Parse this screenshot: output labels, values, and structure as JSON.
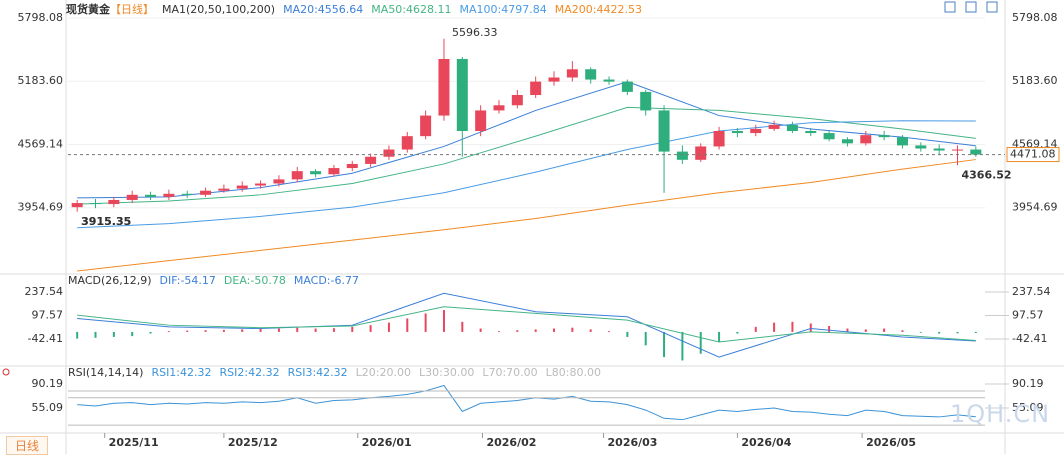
{
  "chart_data": [
    {
      "type": "candlestick",
      "title": "现货黄金",
      "subtitle": "【日线】",
      "indicator": "MA1(20,50,100,200)",
      "open": [
        3960,
        4000,
        3990,
        4030,
        4080,
        4060,
        4090,
        4080,
        4120,
        4140,
        4170,
        4190,
        4230,
        4310,
        4280,
        4340,
        4380,
        4450,
        4520,
        4650,
        4850,
        5400,
        4700,
        4900,
        4950,
        5050,
        5180,
        5220,
        5300,
        5200,
        5180,
        5080,
        4900,
        4500,
        4420,
        4550,
        4700,
        4680,
        4720,
        4760,
        4700,
        4680,
        4620,
        4580,
        4660,
        4640,
        4560,
        4530,
        4510,
        4520
      ],
      "high": [
        4030,
        4040,
        4060,
        4120,
        4110,
        4130,
        4120,
        4150,
        4180,
        4210,
        4220,
        4270,
        4350,
        4330,
        4370,
        4410,
        4480,
        4560,
        4690,
        4900,
        5596.33,
        5420,
        4950,
        5000,
        5100,
        5230,
        5280,
        5380,
        5320,
        5230,
        5200,
        5100,
        4950,
        4560,
        4580,
        4740,
        4730,
        4760,
        4800,
        4790,
        4730,
        4700,
        4640,
        4700,
        4700,
        4660,
        4590,
        4570,
        4560,
        4550
      ],
      "low": [
        3915.35,
        3950,
        3960,
        4000,
        4030,
        4030,
        4050,
        4060,
        4100,
        4110,
        4140,
        4160,
        4200,
        4250,
        4260,
        4310,
        4350,
        4420,
        4490,
        4620,
        4800,
        4450,
        4650,
        4870,
        4920,
        5020,
        5140,
        5180,
        5160,
        5150,
        5050,
        4850,
        4099.02,
        4380,
        4400,
        4520,
        4640,
        4650,
        4700,
        4680,
        4650,
        4600,
        4550,
        4560,
        4610,
        4530,
        4500,
        4470,
        4366.52,
        4450
      ],
      "close": [
        4000,
        3990,
        4030,
        4080,
        4060,
        4090,
        4080,
        4120,
        4140,
        4170,
        4190,
        4230,
        4310,
        4280,
        4340,
        4380,
        4450,
        4520,
        4650,
        4850,
        5400,
        4700,
        4900,
        4950,
        5050,
        5180,
        5220,
        5300,
        5200,
        5180,
        5080,
        4900,
        4500,
        4420,
        4550,
        4700,
        4680,
        4720,
        4760,
        4700,
        4680,
        4620,
        4580,
        4660,
        4640,
        4560,
        4530,
        4510,
        4520,
        4471.08
      ],
      "up_color": "#e8475b",
      "down_color": "#2fae7d",
      "last_color": "#f08a24",
      "series": [
        {
          "name": "MA20:4556.64",
          "color": "#3b7fd8",
          "x": [
            0,
            5,
            10,
            15,
            20,
            25,
            30,
            35,
            40,
            45,
            49
          ],
          "values": [
            4050,
            4060,
            4150,
            4290,
            4550,
            4900,
            5180,
            4850,
            4720,
            4640,
            4556.64
          ]
        },
        {
          "name": "MA50:4628.11",
          "color": "#44b486",
          "x": [
            0,
            5,
            10,
            15,
            20,
            25,
            30,
            35,
            40,
            45,
            49
          ],
          "values": [
            3990,
            4020,
            4080,
            4190,
            4380,
            4650,
            4930,
            4900,
            4820,
            4720,
            4628.11
          ]
        },
        {
          "name": "MA100:4797.84",
          "color": "#4a9be6",
          "x": [
            0,
            5,
            10,
            15,
            20,
            25,
            30,
            35,
            40,
            45,
            49
          ],
          "values": [
            3760,
            3800,
            3870,
            3960,
            4100,
            4300,
            4520,
            4700,
            4780,
            4800,
            4797.84
          ]
        },
        {
          "name": "MA200:4422.53",
          "color": "#f08a24",
          "x": [
            0,
            5,
            10,
            15,
            20,
            25,
            30,
            35,
            40,
            45,
            49
          ],
          "values": [
            3340,
            3440,
            3540,
            3640,
            3740,
            3850,
            3980,
            4100,
            4200,
            4330,
            4422.53
          ]
        }
      ],
      "xlim": [
        -0.5,
        49.5
      ],
      "ylim": [
        3330,
        5798.08
      ],
      "yticks": [
        5798.08,
        {
          "value": 5183.6,
          "label": "5183.60"
        },
        4569.14,
        3954.69
      ],
      "xticks": [
        {
          "value": 1.5,
          "label": "2025/11"
        },
        {
          "value": 8,
          "label": "2025/12"
        },
        {
          "value": 15.3,
          "label": "2026/01"
        },
        {
          "value": 22.1,
          "label": "2026/02"
        },
        {
          "value": 28.7,
          "label": "2026/03"
        },
        {
          "value": 36,
          "label": "2026/04"
        },
        {
          "value": 42.8,
          "label": "2026/05"
        }
      ],
      "grid": true
    },
    {
      "type": "macd",
      "title": "MACD(26,12,9)",
      "histogram": {
        "name": "MACD:-6.77",
        "color": "#3b7fd8",
        "up_color": "#e8475b",
        "down_color": "#2fae7d",
        "values": [
          -40,
          -35,
          -30,
          -25,
          -10,
          5,
          8,
          10,
          12,
          15,
          18,
          20,
          25,
          20,
          22,
          30,
          40,
          55,
          80,
          110,
          130,
          60,
          20,
          5,
          10,
          15,
          20,
          25,
          15,
          5,
          -30,
          -80,
          -150,
          -170,
          -130,
          -60,
          -10,
          30,
          55,
          60,
          50,
          35,
          20,
          15,
          20,
          10,
          -5,
          -10,
          -8,
          -6.77
        ]
      },
      "series": [
        {
          "name": "DIF:-54.17",
          "color": "#3b7fd8",
          "x": [
            0,
            5,
            10,
            15,
            20,
            25,
            30,
            35,
            40,
            45,
            49
          ],
          "values": [
            80,
            30,
            20,
            40,
            230,
            120,
            90,
            -150,
            20,
            -30,
            -54.17
          ]
        },
        {
          "name": "DEA:-50.78",
          "color": "#44b486",
          "x": [
            0,
            5,
            10,
            15,
            20,
            25,
            30,
            35,
            40,
            45,
            49
          ],
          "values": [
            100,
            40,
            25,
            35,
            150,
            110,
            70,
            -60,
            0,
            -20,
            -50.78
          ]
        }
      ],
      "xlim": [
        -0.5,
        49.5
      ],
      "ylim": [
        -197,
        309
      ],
      "yticks": [
        237.54,
        97.57,
        -42.41
      ]
    },
    {
      "type": "rsi",
      "title": "RSI(14,14,14)",
      "series": [
        {
          "name": "RSI1:42.32",
          "color": "#3b93d8",
          "values": [
            60,
            58,
            62,
            63,
            60,
            62,
            61,
            63,
            62,
            64,
            63,
            65,
            70,
            62,
            66,
            67,
            70,
            72,
            75,
            80,
            88,
            50,
            62,
            64,
            66,
            70,
            68,
            72,
            65,
            64,
            60,
            52,
            40,
            38,
            45,
            52,
            50,
            53,
            55,
            50,
            49,
            46,
            44,
            52,
            50,
            44,
            43,
            42,
            45,
            42.32
          ]
        },
        {
          "name": "RSI2:42.32",
          "color": "#3b93d8"
        },
        {
          "name": "RSI3:42.32",
          "color": "#3b93d8"
        }
      ],
      "levels": [
        {
          "name": "L20:20.00",
          "value": 20
        },
        {
          "name": "L30:30.00",
          "value": 30
        },
        {
          "name": "L70:70.00",
          "value": 70
        },
        {
          "name": "L80:80.00",
          "value": 80
        }
      ],
      "level_color": "#bbbbbb",
      "xlim": [
        -0.5,
        49.5
      ],
      "ylim": [
        22.9,
        107.7
      ],
      "yticks": [
        90.19,
        55.09
      ]
    }
  ],
  "ui": {
    "period_button": "日线",
    "watermark": "1QH.CN"
  }
}
